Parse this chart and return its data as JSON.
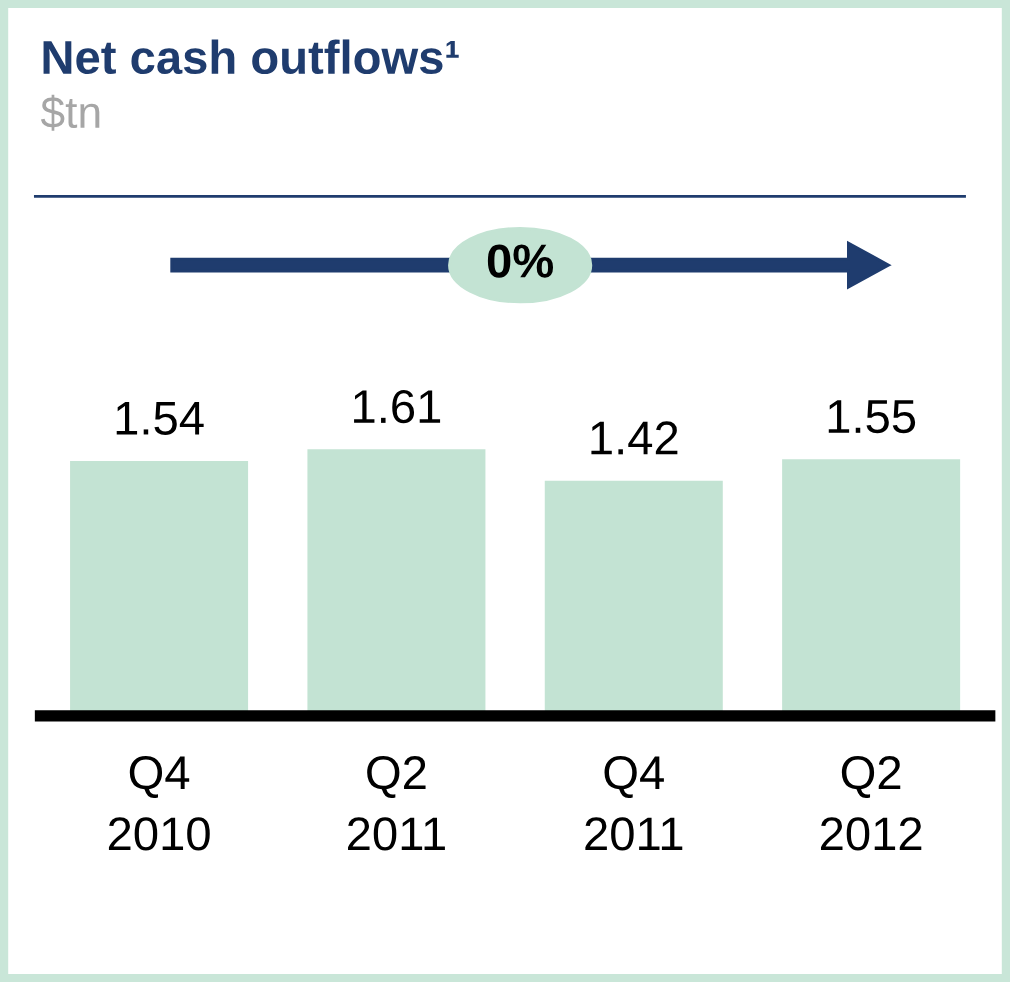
{
  "chart_data": {
    "type": "bar",
    "title": "Net cash outflows¹",
    "subtitle": "$tn",
    "annotations": [
      "0%"
    ],
    "categories": [
      "Q4\n2010",
      "Q2\n2011",
      "Q4\n2011",
      "Q2\n2012"
    ],
    "values": [
      1.54,
      1.61,
      1.42,
      1.55
    ],
    "color": "#c3e3d3",
    "data_labels": true,
    "grid": false,
    "legend": false,
    "tick_labels": "x"
  }
}
